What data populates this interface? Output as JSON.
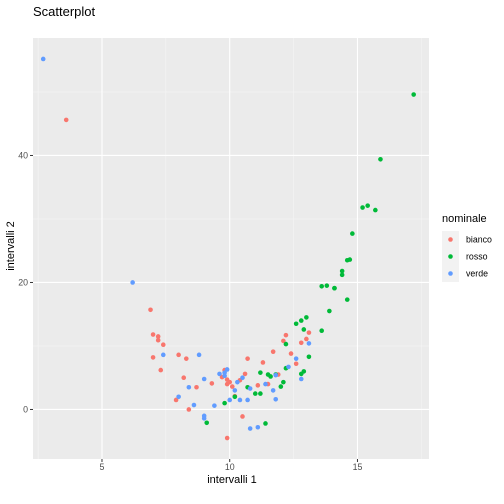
{
  "chart_data": {
    "type": "scatter",
    "title": "Scatterplot",
    "xlabel": "intervalli 1",
    "ylabel": "intervalli 2",
    "xlim": [
      2.3,
      17.8
    ],
    "ylim": [
      -7.8,
      58.5
    ],
    "xticks": [
      5,
      10,
      15
    ],
    "yticks": [
      0,
      20,
      40
    ],
    "grid": true,
    "background": "#ebebeb",
    "legend": {
      "title": "nominale",
      "position": "right",
      "entries": [
        "bianco",
        "rosso",
        "verde"
      ]
    },
    "series": [
      {
        "name": "bianco",
        "color": "#f8766d",
        "points": [
          [
            3.6,
            45.6
          ],
          [
            6.9,
            15.7
          ],
          [
            7.0,
            11.8
          ],
          [
            7.2,
            11.5
          ],
          [
            7.2,
            10.9
          ],
          [
            7.4,
            10.2
          ],
          [
            7.0,
            8.2
          ],
          [
            7.3,
            6.2
          ],
          [
            8.0,
            8.6
          ],
          [
            8.3,
            8.0
          ],
          [
            8.2,
            5.0
          ],
          [
            8.4,
            0.0
          ],
          [
            7.9,
            1.5
          ],
          [
            8.7,
            3.5
          ],
          [
            9.3,
            4.1
          ],
          [
            9.7,
            5.1
          ],
          [
            9.8,
            6.2
          ],
          [
            9.9,
            4.7
          ],
          [
            9.9,
            4.0
          ],
          [
            10.0,
            4.3
          ],
          [
            10.1,
            3.6
          ],
          [
            10.2,
            2.1
          ],
          [
            10.4,
            4.6
          ],
          [
            10.6,
            5.6
          ],
          [
            10.7,
            8.0
          ],
          [
            11.1,
            3.8
          ],
          [
            11.3,
            7.4
          ],
          [
            11.5,
            4.0
          ],
          [
            11.7,
            9.1
          ],
          [
            11.9,
            5.5
          ],
          [
            12.1,
            10.8
          ],
          [
            12.2,
            11.7
          ],
          [
            12.4,
            8.8
          ],
          [
            12.6,
            7.2
          ],
          [
            12.8,
            10.5
          ],
          [
            13.0,
            11.1
          ],
          [
            13.1,
            12.1
          ],
          [
            10.5,
            -1.1
          ],
          [
            9.9,
            -4.5
          ]
        ]
      },
      {
        "name": "rosso",
        "color": "#00ba38",
        "points": [
          [
            17.2,
            49.6
          ],
          [
            15.9,
            39.4
          ],
          [
            15.4,
            32.1
          ],
          [
            15.2,
            31.8
          ],
          [
            15.7,
            31.4
          ],
          [
            14.8,
            27.7
          ],
          [
            14.7,
            23.6
          ],
          [
            14.6,
            23.5
          ],
          [
            14.4,
            21.8
          ],
          [
            14.4,
            21.2
          ],
          [
            14.6,
            17.3
          ],
          [
            14.1,
            19.1
          ],
          [
            14.1,
            19.1
          ],
          [
            13.8,
            19.5
          ],
          [
            13.6,
            19.4
          ],
          [
            13.9,
            15.5
          ],
          [
            13.6,
            12.4
          ],
          [
            13.1,
            8.3
          ],
          [
            13.0,
            14.5
          ],
          [
            12.8,
            14.0
          ],
          [
            12.6,
            13.5
          ],
          [
            12.9,
            12.6
          ],
          [
            12.8,
            5.6
          ],
          [
            12.9,
            6.0
          ],
          [
            12.2,
            10.3
          ],
          [
            12.2,
            6.5
          ],
          [
            12.1,
            4.3
          ],
          [
            12.0,
            3.6
          ],
          [
            11.8,
            5.5
          ],
          [
            11.5,
            5.5
          ],
          [
            11.2,
            5.8
          ],
          [
            11.2,
            2.5
          ],
          [
            11.4,
            -2.2
          ],
          [
            11.0,
            2.5
          ],
          [
            10.7,
            3.5
          ],
          [
            10.2,
            2.0
          ],
          [
            9.8,
            1.0
          ],
          [
            9.1,
            -2.1
          ],
          [
            11.6,
            5.2
          ]
        ]
      },
      {
        "name": "verde",
        "color": "#619cff",
        "points": [
          [
            2.7,
            55.2
          ],
          [
            6.2,
            20.0
          ],
          [
            7.4,
            8.6
          ],
          [
            8.8,
            8.6
          ],
          [
            8.0,
            2.0
          ],
          [
            8.4,
            3.5
          ],
          [
            8.6,
            0.7
          ],
          [
            9.0,
            -1.4
          ],
          [
            9.0,
            4.8
          ],
          [
            9.4,
            0.6
          ],
          [
            9.6,
            5.6
          ],
          [
            9.8,
            5.8
          ],
          [
            9.8,
            5.3
          ],
          [
            9.9,
            6.3
          ],
          [
            10.0,
            1.5
          ],
          [
            10.2,
            3.0
          ],
          [
            10.3,
            4.3
          ],
          [
            10.5,
            5.0
          ],
          [
            10.7,
            1.5
          ],
          [
            10.8,
            3.3
          ],
          [
            11.1,
            -2.8
          ],
          [
            11.4,
            4.0
          ],
          [
            11.7,
            3.0
          ],
          [
            11.8,
            1.6
          ],
          [
            12.3,
            6.7
          ],
          [
            12.6,
            8.0
          ],
          [
            12.8,
            4.8
          ],
          [
            13.1,
            10.4
          ],
          [
            11.8,
            5.4
          ],
          [
            10.4,
            1.5
          ],
          [
            9.0,
            -1.0
          ],
          [
            10.8,
            -3.0
          ]
        ]
      }
    ]
  }
}
